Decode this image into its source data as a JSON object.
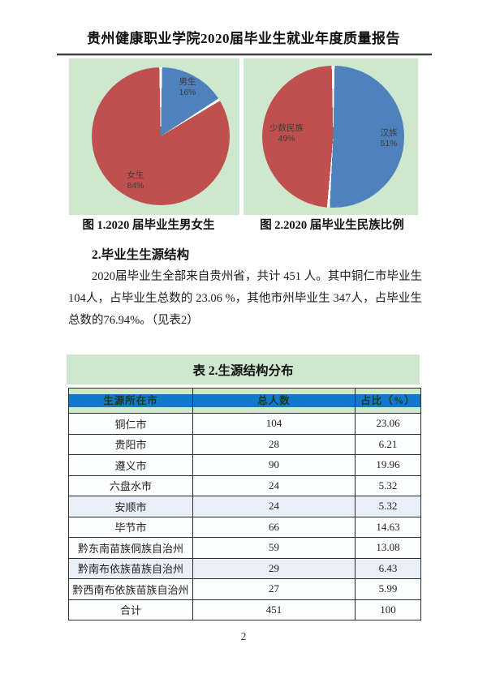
{
  "header": {
    "title": "贵州健康职业学院2020届毕业生就业年度质量报告"
  },
  "figures": {
    "gender": {
      "caption": "图 1.2020 届毕业生男女生",
      "slices": [
        {
          "label": "男生",
          "pct": "16%"
        },
        {
          "label": "女生",
          "pct": "84%"
        }
      ]
    },
    "ethnic": {
      "caption": "图 2.2020 届毕业生民族比例",
      "slices": [
        {
          "label": "少数民族",
          "pct": "49%"
        },
        {
          "label": "汉族",
          "pct": "51%"
        }
      ]
    }
  },
  "section": {
    "heading": "2.毕业生生源结构",
    "paragraph": "2020届毕业生全部来自贵州省，共计 451 人。其中铜仁市毕业生 104人，占毕业生总数的 23.06 %，其他市州毕业生 347人，占毕业生总数的76.94%。（见表2）"
  },
  "table": {
    "title": "表 2.生源结构分布",
    "headers": [
      "生源所在市",
      "总人数",
      "占比（%）"
    ],
    "rows": [
      [
        "铜仁市",
        "104",
        "23.06"
      ],
      [
        "贵阳市",
        "28",
        "6.21"
      ],
      [
        "遵义市",
        "90",
        "19.96"
      ],
      [
        "六盘水市",
        "24",
        "5.32"
      ],
      [
        "安顺市",
        "24",
        "5.32"
      ],
      [
        "毕节市",
        "66",
        "14.63"
      ],
      [
        "黔东南苗族侗族自治州",
        "59",
        "13.08"
      ],
      [
        "黔南布依族苗族自治州",
        "29",
        "6.43"
      ],
      [
        "黔西南布依族苗族自治州",
        "27",
        "5.99"
      ],
      [
        "合计",
        "451",
        "100"
      ]
    ]
  },
  "footer": {
    "page_number": "2"
  },
  "colors": {
    "panel_green": "#cde8cf",
    "pie_red": "#c0504d",
    "pie_blue": "#4f81bd",
    "header_band_blue": "#1478c8",
    "tinted_row": "#e9eff8"
  },
  "chart_data": [
    {
      "type": "pie",
      "title": "图 1.2020 届毕业生男女生",
      "labels": [
        "男生",
        "女生"
      ],
      "values": [
        16,
        84
      ],
      "unit": "%",
      "colors": [
        "#4f81bd",
        "#c0504d"
      ],
      "legend_position": "inside",
      "start_angle_deg": 0,
      "direction": "clockwise"
    },
    {
      "type": "pie",
      "title": "图 2.2020 届毕业生民族比例",
      "labels": [
        "汉族",
        "少数民族"
      ],
      "values": [
        51,
        49
      ],
      "unit": "%",
      "colors": [
        "#4f81bd",
        "#c0504d"
      ],
      "legend_position": "inside",
      "start_angle_deg": 0,
      "direction": "clockwise"
    },
    {
      "type": "table",
      "title": "表 2.生源结构分布",
      "columns": [
        "生源所在市",
        "总人数",
        "占比（%）"
      ],
      "rows": [
        [
          "铜仁市",
          104,
          23.06
        ],
        [
          "贵阳市",
          28,
          6.21
        ],
        [
          "遵义市",
          90,
          19.96
        ],
        [
          "六盘水市",
          24,
          5.32
        ],
        [
          "安顺市",
          24,
          5.32
        ],
        [
          "毕节市",
          66,
          14.63
        ],
        [
          "黔东南苗族侗族自治州",
          59,
          13.08
        ],
        [
          "黔南布依族苗族自治州",
          29,
          6.43
        ],
        [
          "黔西南布依族苗族自治州",
          27,
          5.99
        ],
        [
          "合计",
          451,
          100
        ]
      ]
    }
  ]
}
